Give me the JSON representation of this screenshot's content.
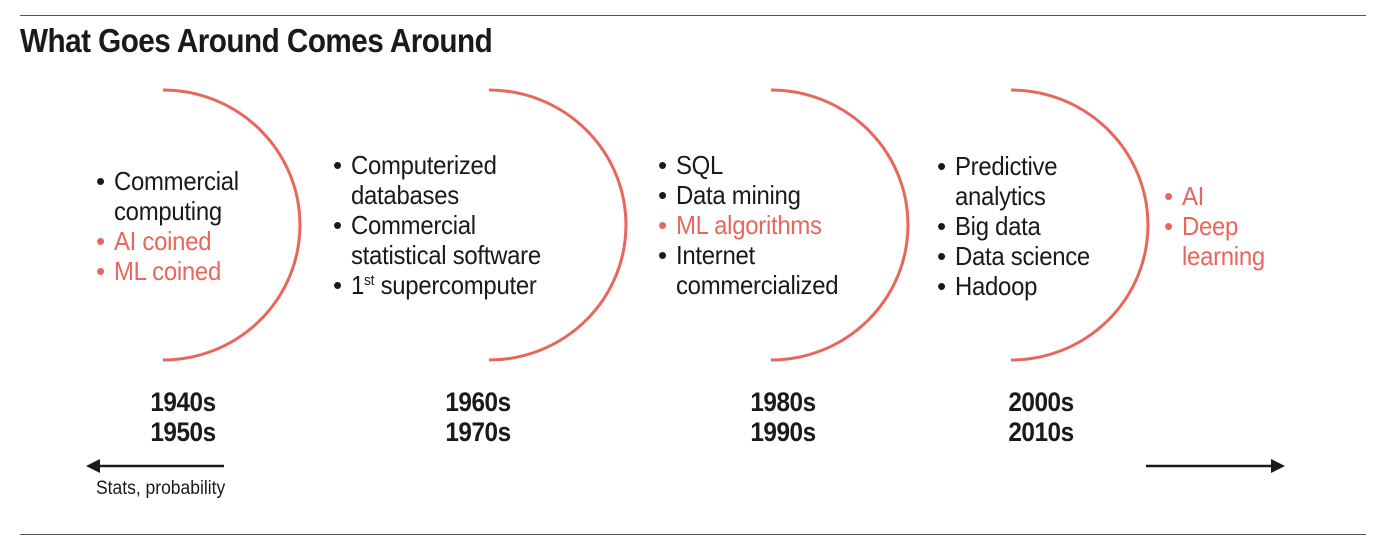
{
  "title": "What Goes Around Comes Around",
  "colors": {
    "accent": "#e8675c",
    "text": "#1a1a1a",
    "arrow": "#1a1a1a"
  },
  "eras": [
    {
      "decades": [
        "1940s",
        "1950s"
      ],
      "items": [
        {
          "text": "Commercial\ncomputing",
          "highlight": false
        },
        {
          "text": "AI coined",
          "highlight": true
        },
        {
          "text": "ML coined",
          "highlight": true
        }
      ]
    },
    {
      "decades": [
        "1960s",
        "1970s"
      ],
      "items": [
        {
          "text": "Computerized\ndatabases",
          "highlight": false
        },
        {
          "text": "Commercial\nstatistical software",
          "highlight": false
        },
        {
          "text": "1",
          "sup": "st",
          "rest": " supercomputer",
          "highlight": false
        }
      ]
    },
    {
      "decades": [
        "1980s",
        "1990s"
      ],
      "items": [
        {
          "text": "SQL",
          "highlight": false
        },
        {
          "text": "Data mining",
          "highlight": false
        },
        {
          "text": "ML algorithms",
          "highlight": true
        },
        {
          "text": "Internet\ncommercialized",
          "highlight": false
        }
      ]
    },
    {
      "decades": [
        "2000s",
        "2010s"
      ],
      "items": [
        {
          "text": "Predictive\nanalytics",
          "highlight": false
        },
        {
          "text": "Big data",
          "highlight": false
        },
        {
          "text": "Data science",
          "highlight": false
        },
        {
          "text": "Hadoop",
          "highlight": false
        }
      ]
    },
    {
      "decades": [],
      "items": [
        {
          "text": "AI",
          "highlight": true
        },
        {
          "text": "Deep\nlearning",
          "highlight": true
        }
      ]
    }
  ],
  "left_arrow_label": "Stats, probability",
  "bullet": "•"
}
